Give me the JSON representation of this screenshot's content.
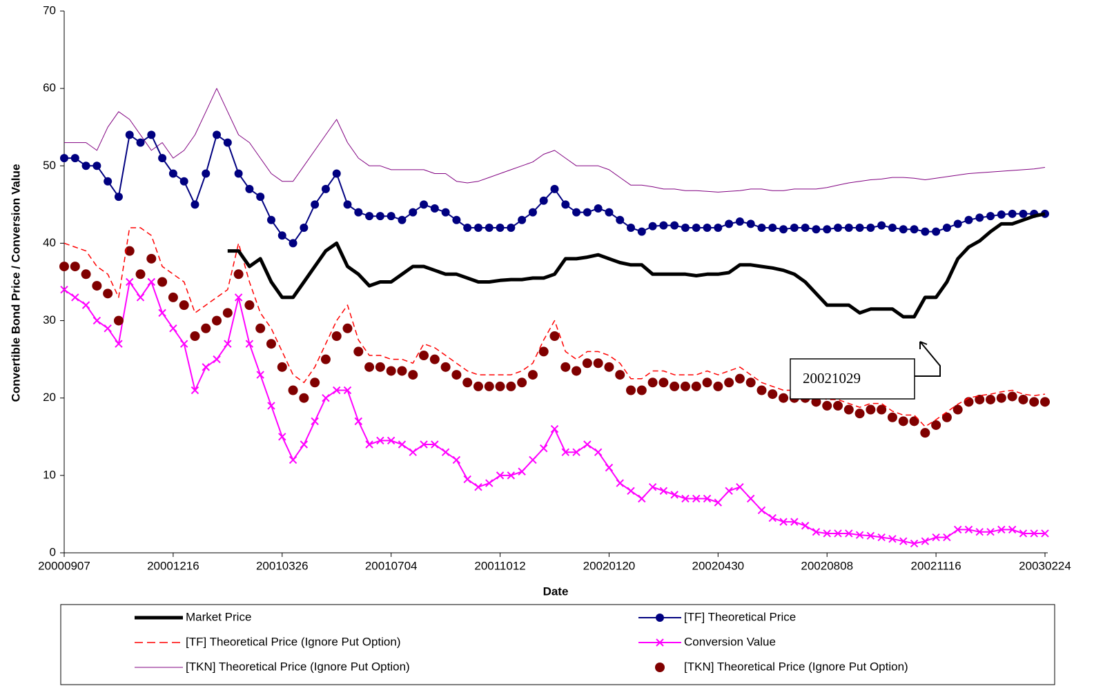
{
  "chart_data": {
    "type": "line",
    "y_label": "Convertible Bond Price /  Conversion Value",
    "x_label": "Date",
    "annotation": "20021029",
    "ylim": [
      0,
      70
    ],
    "yticks": [
      0,
      10,
      20,
      30,
      40,
      50,
      60,
      70
    ],
    "categories": [
      "20000907",
      null,
      null,
      null,
      null,
      null,
      null,
      null,
      null,
      null,
      "20001216",
      null,
      null,
      null,
      null,
      null,
      null,
      null,
      null,
      null,
      "20010326",
      null,
      null,
      null,
      null,
      null,
      null,
      null,
      null,
      null,
      "20010704",
      null,
      null,
      null,
      null,
      null,
      null,
      null,
      null,
      null,
      "20011012",
      null,
      null,
      null,
      null,
      null,
      null,
      null,
      null,
      null,
      "20020120",
      null,
      null,
      null,
      null,
      null,
      null,
      null,
      null,
      null,
      "20020430",
      null,
      null,
      null,
      null,
      null,
      null,
      null,
      null,
      null,
      "20020808",
      null,
      null,
      null,
      null,
      null,
      null,
      null,
      null,
      null,
      "20021116",
      null,
      null,
      null,
      null,
      null,
      null,
      null,
      null,
      null,
      "20030224"
    ],
    "series": [
      {
        "name": "Market Price",
        "color": "#000000",
        "line_width": 5,
        "marker": "none",
        "dash": false,
        "values": [
          null,
          null,
          null,
          null,
          null,
          null,
          null,
          null,
          null,
          null,
          null,
          null,
          null,
          null,
          null,
          39,
          39,
          37,
          38,
          35,
          33,
          33,
          35,
          37,
          39,
          40,
          37,
          36,
          34.5,
          35,
          35,
          36,
          37,
          37,
          36.5,
          36,
          36,
          35.5,
          35,
          35,
          35.2,
          35.3,
          35.3,
          35.5,
          35.5,
          36,
          38,
          38,
          38.2,
          38.5,
          38,
          37.5,
          37.2,
          37.2,
          36,
          36,
          36,
          36,
          35.8,
          36,
          36,
          36.2,
          37.2,
          37.2,
          37,
          36.8,
          36.5,
          36,
          35,
          33.5,
          32,
          32,
          32,
          31,
          31.5,
          31.5,
          31.5,
          30.5,
          30.5,
          33,
          33,
          35,
          38,
          39.5,
          40.3,
          41.5,
          42.5,
          42.5,
          43,
          43.5,
          43.8
        ]
      },
      {
        "name": "[TF] Theoretical Price",
        "color": "#000080",
        "line_width": 2,
        "marker": "circle",
        "dash": false,
        "values": [
          51,
          51,
          50,
          50,
          48,
          46,
          54,
          53,
          54,
          51,
          49,
          48,
          45,
          49,
          54,
          53,
          49,
          47,
          46,
          43,
          41,
          40,
          42,
          45,
          47,
          49,
          45,
          44,
          43.5,
          43.5,
          43.5,
          43,
          44,
          45,
          44.5,
          44,
          43,
          42,
          42,
          42,
          42,
          42,
          43,
          44,
          45.5,
          47,
          45,
          44,
          44,
          44.5,
          44,
          43,
          42,
          41.5,
          42.2,
          42.3,
          42.3,
          42,
          42,
          42,
          42,
          42.5,
          42.8,
          42.5,
          42,
          42,
          41.8,
          42,
          42,
          41.8,
          41.8,
          42,
          42,
          42,
          42,
          42.3,
          42,
          41.8,
          41.8,
          41.5,
          41.5,
          42,
          42.5,
          43,
          43.3,
          43.5,
          43.7,
          43.8,
          43.8,
          43.8,
          43.8
        ]
      },
      {
        "name": "[TF] Theoretical Price (Ignore Put Option)",
        "color": "#ff0000",
        "line_width": 1.5,
        "marker": "none",
        "dash": true,
        "values": [
          40,
          39.5,
          39,
          37,
          36,
          33,
          42,
          42,
          41,
          37,
          36,
          35,
          31,
          32,
          33,
          34,
          40,
          35,
          31,
          29,
          26,
          23,
          22,
          24,
          27,
          30,
          32,
          27.5,
          25.5,
          25.5,
          25,
          25,
          24.5,
          27,
          26.5,
          25.5,
          24.5,
          23.5,
          23,
          23,
          23,
          23,
          23.5,
          24.5,
          27.5,
          30,
          26,
          25,
          26,
          26,
          25.5,
          24.5,
          22.5,
          22.5,
          23.5,
          23.5,
          23,
          23,
          23,
          23.5,
          23,
          23.5,
          24,
          23,
          22,
          21.5,
          21,
          21,
          20.8,
          20.3,
          19.8,
          19.8,
          19.3,
          18.8,
          19.3,
          19.3,
          18.3,
          17.8,
          17.8,
          16.3,
          17.2,
          18.2,
          19.2,
          20,
          20.3,
          20.5,
          20.8,
          21,
          20.5,
          20.3,
          20.5
        ]
      },
      {
        "name": "Conversion Value",
        "color": "#ff00ff",
        "line_width": 2,
        "marker": "x",
        "dash": false,
        "values": [
          34,
          33,
          32,
          30,
          29,
          27,
          35,
          33,
          35,
          31,
          29,
          27,
          21,
          24,
          25,
          27,
          33,
          27,
          23,
          19,
          15,
          12,
          14,
          17,
          20,
          21,
          21,
          17,
          14,
          14.5,
          14.5,
          14,
          13,
          14,
          14,
          13,
          12,
          9.5,
          8.5,
          9,
          10,
          10,
          10.5,
          12,
          13.5,
          16,
          13,
          13,
          14,
          13,
          11,
          9,
          8,
          7,
          8.5,
          8,
          7.5,
          7,
          7,
          7,
          6.5,
          8,
          8.5,
          7,
          5.5,
          4.5,
          4,
          4,
          3.5,
          2.7,
          2.5,
          2.5,
          2.5,
          2.3,
          2.2,
          2,
          1.8,
          1.5,
          1.2,
          1.5,
          2,
          2,
          3,
          3,
          2.7,
          2.7,
          3,
          3,
          2.5,
          2.5,
          2.5
        ]
      },
      {
        "name": "[TKN] Theoretical Price (Ignore Put Option)",
        "color": "#800080",
        "line_width": 1,
        "marker": "none",
        "dash": false,
        "values": [
          53,
          53,
          53,
          52,
          55,
          57,
          56,
          54,
          52,
          53,
          51,
          52,
          54,
          57,
          60,
          57,
          54,
          53,
          51,
          49,
          48,
          48,
          50,
          52,
          54,
          56,
          53,
          51,
          50,
          50,
          49.5,
          49.5,
          49.5,
          49.5,
          49,
          49,
          48,
          47.8,
          48,
          48.5,
          49,
          49.5,
          50,
          50.5,
          51.5,
          52,
          51,
          50,
          50,
          50,
          49.5,
          48.5,
          47.5,
          47.5,
          47.3,
          47,
          47,
          46.8,
          46.8,
          46.7,
          46.6,
          46.7,
          46.8,
          47,
          47,
          46.8,
          46.8,
          47,
          47,
          47,
          47.2,
          47.5,
          47.8,
          48,
          48.2,
          48.3,
          48.5,
          48.5,
          48.4,
          48.2,
          48.4,
          48.6,
          48.8,
          49,
          49.1,
          49.2,
          49.3,
          49.4,
          49.5,
          49.6,
          49.8
        ]
      },
      {
        "name": "[TKN] Theoretical Price (Ignore Put Option)",
        "color": "#800000",
        "line_width": 0,
        "marker": "dot",
        "dash": false,
        "values": [
          37,
          37,
          36,
          34.5,
          33.5,
          30,
          39,
          36,
          38,
          35,
          33,
          32,
          28,
          29,
          30,
          31,
          36,
          32,
          29,
          27,
          24,
          21,
          20,
          22,
          25,
          28,
          29,
          26,
          24,
          24,
          23.5,
          23.5,
          23,
          25.5,
          25,
          24,
          23,
          22,
          21.5,
          21.5,
          21.5,
          21.5,
          22,
          23,
          26,
          28,
          24,
          23.5,
          24.5,
          24.5,
          24,
          23,
          21,
          21,
          22,
          22,
          21.5,
          21.5,
          21.5,
          22,
          21.5,
          22,
          22.5,
          22,
          21,
          20.5,
          20,
          20,
          20,
          19.5,
          19,
          19,
          18.5,
          18,
          18.5,
          18.5,
          17.5,
          17,
          17,
          15.5,
          16.5,
          17.5,
          18.5,
          19.5,
          19.8,
          19.8,
          20,
          20.2,
          19.8,
          19.5,
          19.5
        ]
      }
    ]
  }
}
